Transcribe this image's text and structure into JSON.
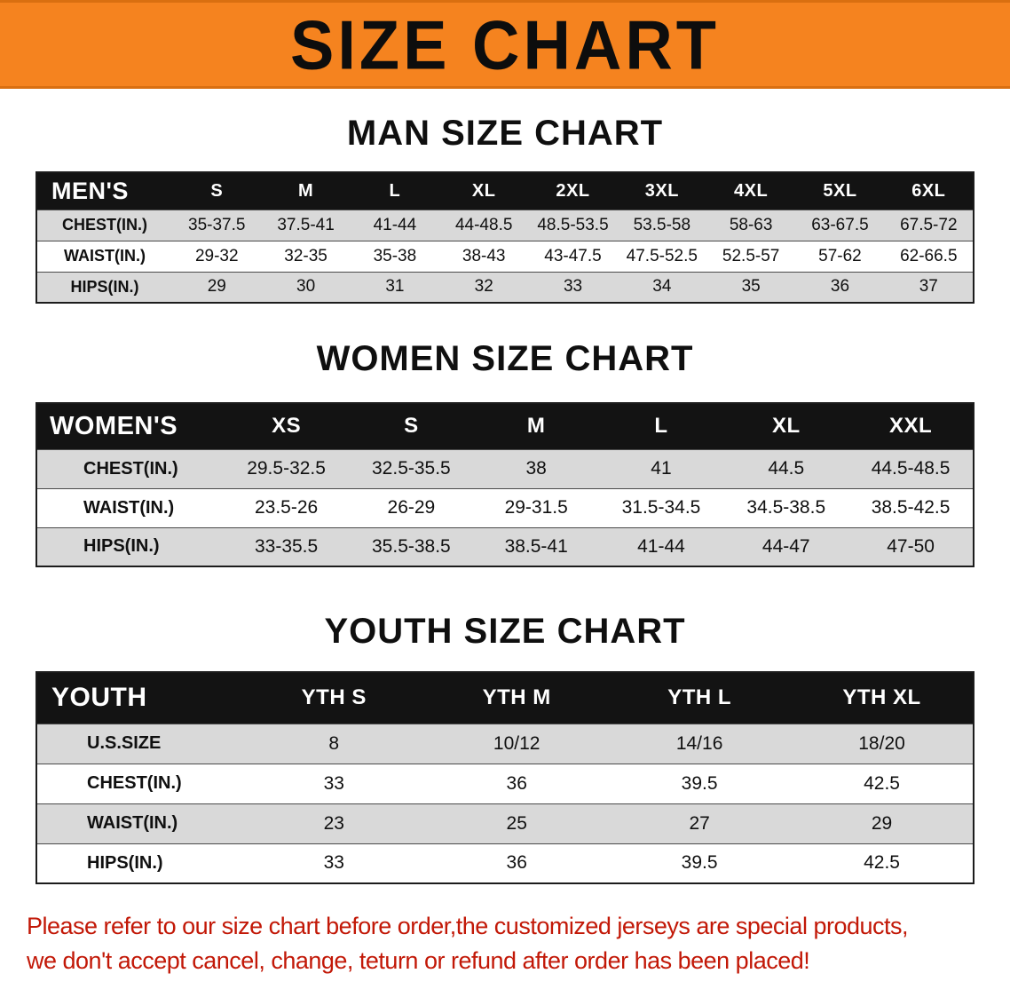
{
  "banner": {
    "title": "SIZE CHART",
    "bg_color": "#f5831f"
  },
  "sections": [
    {
      "heading": "MAN SIZE CHART",
      "table": {
        "header": [
          "MEN'S",
          "S",
          "M",
          "L",
          "XL",
          "2XL",
          "3XL",
          "4XL",
          "5XL",
          "6XL"
        ],
        "rows": [
          [
            "CHEST(IN.)",
            "35-37.5",
            "37.5-41",
            "41-44",
            "44-48.5",
            "48.5-53.5",
            "53.5-58",
            "58-63",
            "63-67.5",
            "67.5-72"
          ],
          [
            "WAIST(IN.)",
            "29-32",
            "32-35",
            "35-38",
            "38-43",
            "43-47.5",
            "47.5-52.5",
            "52.5-57",
            "57-62",
            "62-66.5"
          ],
          [
            "HIPS(IN.)",
            "29",
            "30",
            "31",
            "32",
            "33",
            "34",
            "35",
            "36",
            "37"
          ]
        ]
      }
    },
    {
      "heading": "WOMEN SIZE CHART",
      "table": {
        "header": [
          "WOMEN'S",
          "XS",
          "S",
          "M",
          "L",
          "XL",
          "XXL"
        ],
        "rows": [
          [
            "CHEST(IN.)",
            "29.5-32.5",
            "32.5-35.5",
            "38",
            "41",
            "44.5",
            "44.5-48.5"
          ],
          [
            "WAIST(IN.)",
            "23.5-26",
            "26-29",
            "29-31.5",
            "31.5-34.5",
            "34.5-38.5",
            "38.5-42.5"
          ],
          [
            "HIPS(IN.)",
            "33-35.5",
            "35.5-38.5",
            "38.5-41",
            "41-44",
            "44-47",
            "47-50"
          ]
        ]
      }
    },
    {
      "heading": "YOUTH SIZE CHART",
      "table": {
        "header": [
          "YOUTH",
          "YTH S",
          "YTH M",
          "YTH L",
          "YTH XL"
        ],
        "rows": [
          [
            "U.S.SIZE",
            "8",
            "10/12",
            "14/16",
            "18/20"
          ],
          [
            "CHEST(IN.)",
            "33",
            "36",
            "39.5",
            "42.5"
          ],
          [
            "WAIST(IN.)",
            "23",
            "25",
            "27",
            "29"
          ],
          [
            "HIPS(IN.)",
            "33",
            "36",
            "39.5",
            "42.5"
          ]
        ]
      }
    }
  ],
  "footer": {
    "line1": "Please refer to our size chart before order,the customized jerseys are special products,",
    "line2": "we don't accept cancel, change, teturn or refund after order has been placed!",
    "color": "#c21807"
  }
}
